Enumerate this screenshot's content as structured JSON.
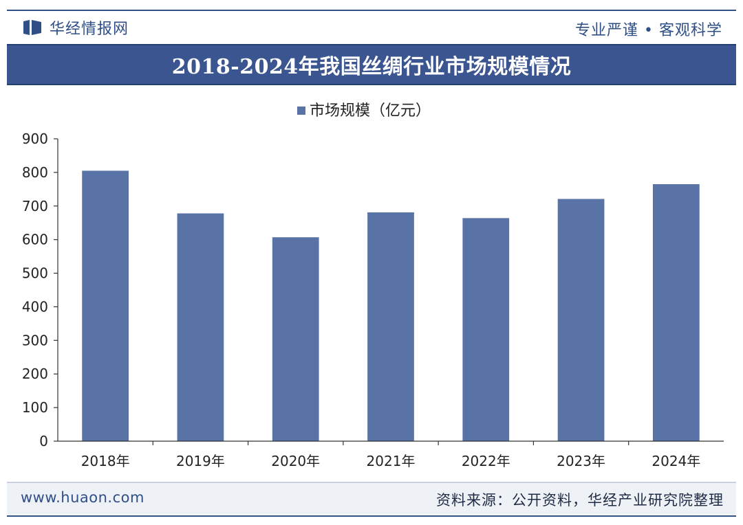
{
  "header": {
    "brand": "华经情报网",
    "slogan": "专业严谨 • 客观科学"
  },
  "title": "2018-2024年我国丝绸行业市场规模情况",
  "footer": {
    "website": "www.huaon.com",
    "source": "资料来源：公开资料，华经产业研究院整理"
  },
  "colors": {
    "bar": "#5a73a6",
    "brand": "#2f4f87",
    "title_bg": "#3a558f"
  },
  "chart_data": {
    "type": "bar",
    "categories": [
      "2018年",
      "2019年",
      "2020年",
      "2021年",
      "2022年",
      "2023年",
      "2024年"
    ],
    "series": [
      {
        "name": "市场规模（亿元）",
        "values": [
          805,
          678,
          607,
          681,
          664,
          721,
          765
        ]
      }
    ],
    "ylim": [
      0,
      900
    ],
    "yticks": [
      0,
      100,
      200,
      300,
      400,
      500,
      600,
      700,
      800,
      900
    ],
    "legend_position": "top",
    "grid": false
  }
}
